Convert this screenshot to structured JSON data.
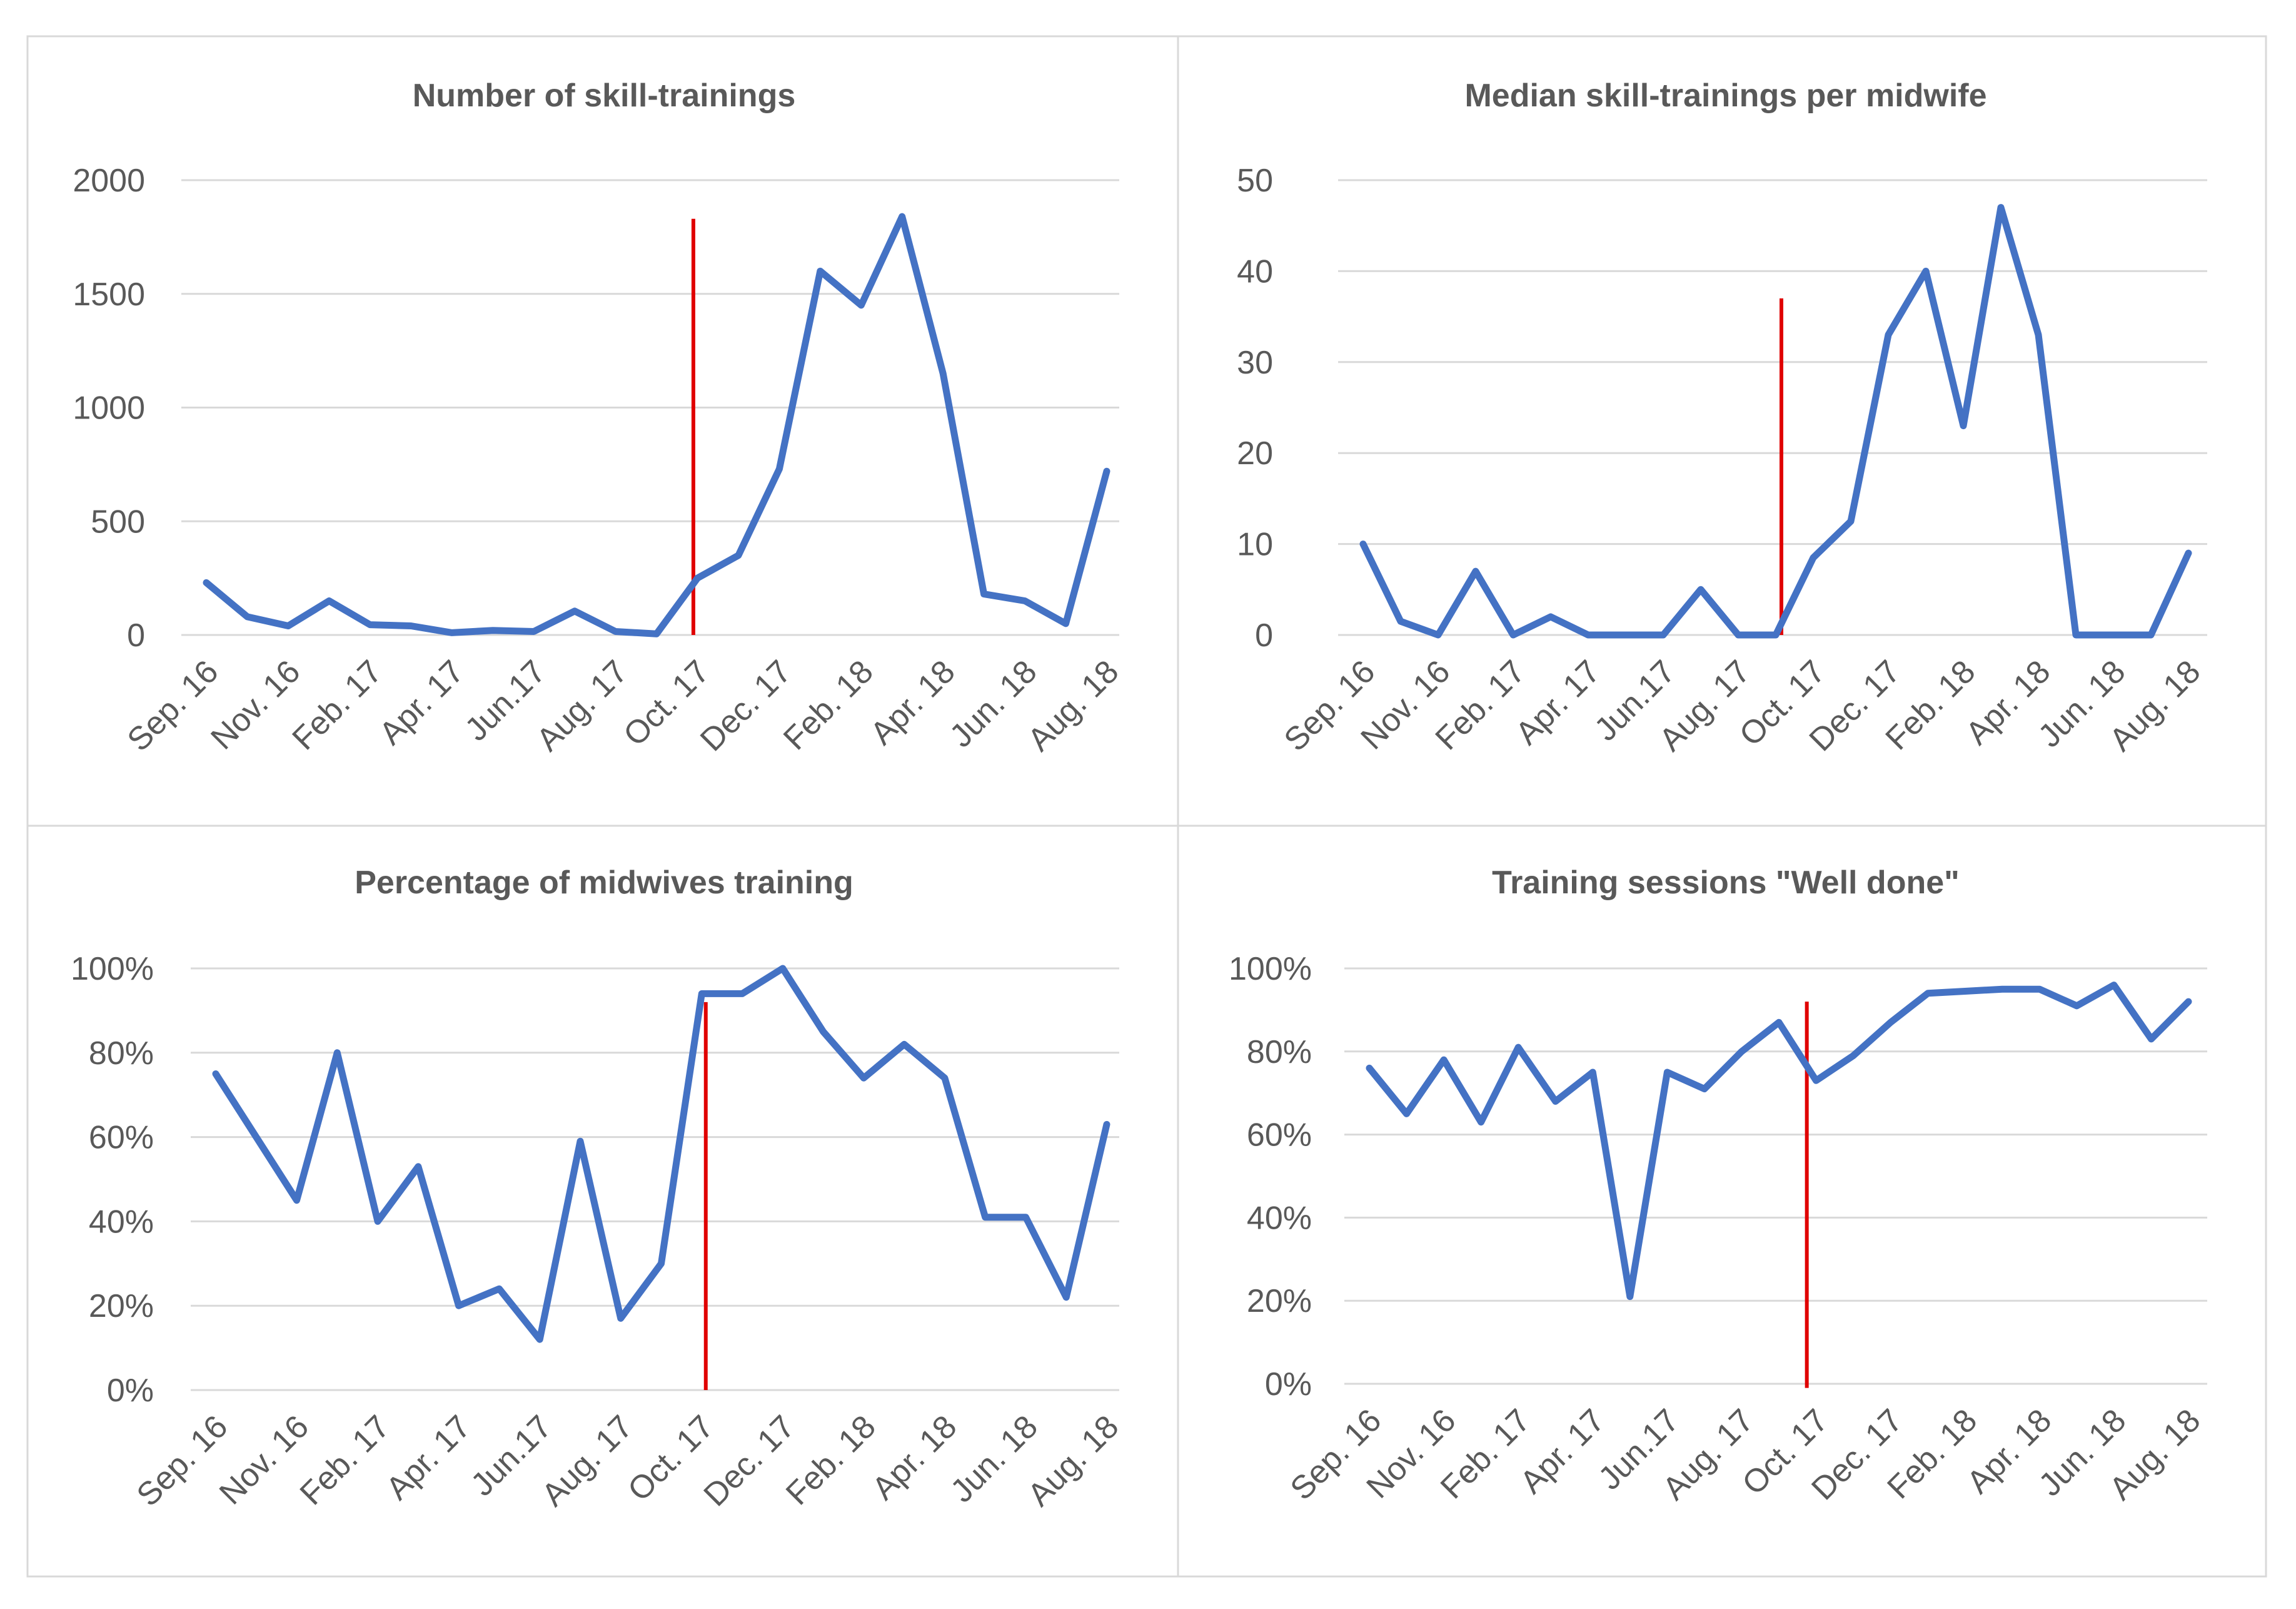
{
  "colors": {
    "series": "#4472c4",
    "marker": "#e00000",
    "grid": "#d9d9d9",
    "text": "#595959",
    "border": "#d9d9d9"
  },
  "chart_data": [
    {
      "type": "line",
      "title": "Number of skill-trainings",
      "x_tick_labels": [
        "Sep. 16",
        "Nov. 16",
        "Feb. 17",
        "Apr. 17",
        "Jun.17",
        "Aug. 17",
        "Oct. 17",
        "Dec. 17",
        "Feb. 18",
        "Apr. 18",
        "Jun. 18",
        "Aug. 18"
      ],
      "y_tick_labels": [
        "0",
        "500",
        "1000",
        "1500",
        "2000"
      ],
      "ylim": [
        0,
        2000
      ],
      "values": [
        230,
        80,
        40,
        150,
        45,
        40,
        10,
        20,
        15,
        105,
        15,
        5,
        250,
        350,
        730,
        1600,
        1450,
        1840,
        1150,
        180,
        150,
        50,
        720
      ],
      "marker_index": 11.9,
      "marker_top": 1830,
      "marker_bottom": 0
    },
    {
      "type": "line",
      "title": "Median skill-trainings per midwife",
      "x_tick_labels": [
        "Sep. 16",
        "Nov. 16",
        "Feb. 17",
        "Apr. 17",
        "Jun.17",
        "Aug. 17",
        "Oct. 17",
        "Dec. 17",
        "Feb. 18",
        "Apr. 18",
        "Jun. 18",
        "Aug. 18"
      ],
      "y_tick_labels": [
        "0",
        "10",
        "20",
        "30",
        "40",
        "50"
      ],
      "ylim": [
        0,
        50
      ],
      "values": [
        10,
        1.5,
        0,
        7,
        0,
        2,
        0,
        0,
        0,
        5,
        0,
        0,
        8.5,
        12.5,
        33,
        40,
        23,
        47,
        33,
        0,
        0,
        0,
        9
      ],
      "marker_index": 11.15,
      "marker_top": 37,
      "marker_bottom": 0
    },
    {
      "type": "line",
      "title": "Percentage of midwives training",
      "x_tick_labels": [
        "Sep. 16",
        "Nov. 16",
        "Feb. 17",
        "Apr. 17",
        "Jun.17",
        "Aug. 17",
        "Oct. 17",
        "Dec. 17",
        "Feb. 18",
        "Apr. 18",
        "Jun. 18",
        "Aug. 18"
      ],
      "y_tick_labels": [
        "0%",
        "20%",
        "40%",
        "60%",
        "80%",
        "100%"
      ],
      "ylim": [
        0,
        100
      ],
      "values": [
        75,
        60,
        45,
        80,
        40,
        53,
        20,
        24,
        12,
        59,
        17,
        30,
        94,
        94,
        100,
        85,
        74,
        82,
        74,
        41,
        41,
        22,
        63
      ],
      "marker_index": 12.1,
      "marker_top": 92,
      "marker_bottom": 0
    },
    {
      "type": "line",
      "title": "Training sessions \"Well done\"",
      "x_tick_labels": [
        "Sep. 16",
        "Nov. 16",
        "Feb. 17",
        "Apr. 17",
        "Jun.17",
        "Aug. 17",
        "Oct. 17",
        "Dec. 17",
        "Feb. 18",
        "Apr. 18",
        "Jun. 18",
        "Aug. 18"
      ],
      "y_tick_labels": [
        "0%",
        "20%",
        "40%",
        "60%",
        "80%",
        "100%"
      ],
      "ylim": [
        0,
        100
      ],
      "values": [
        76,
        65,
        78,
        63,
        81,
        68,
        75,
        21,
        75,
        71,
        80,
        87,
        73,
        79,
        87,
        94,
        94.5,
        95,
        95,
        91,
        96,
        83,
        92
      ],
      "marker_index": 11.75,
      "marker_top": 92,
      "marker_bottom": -1
    }
  ]
}
